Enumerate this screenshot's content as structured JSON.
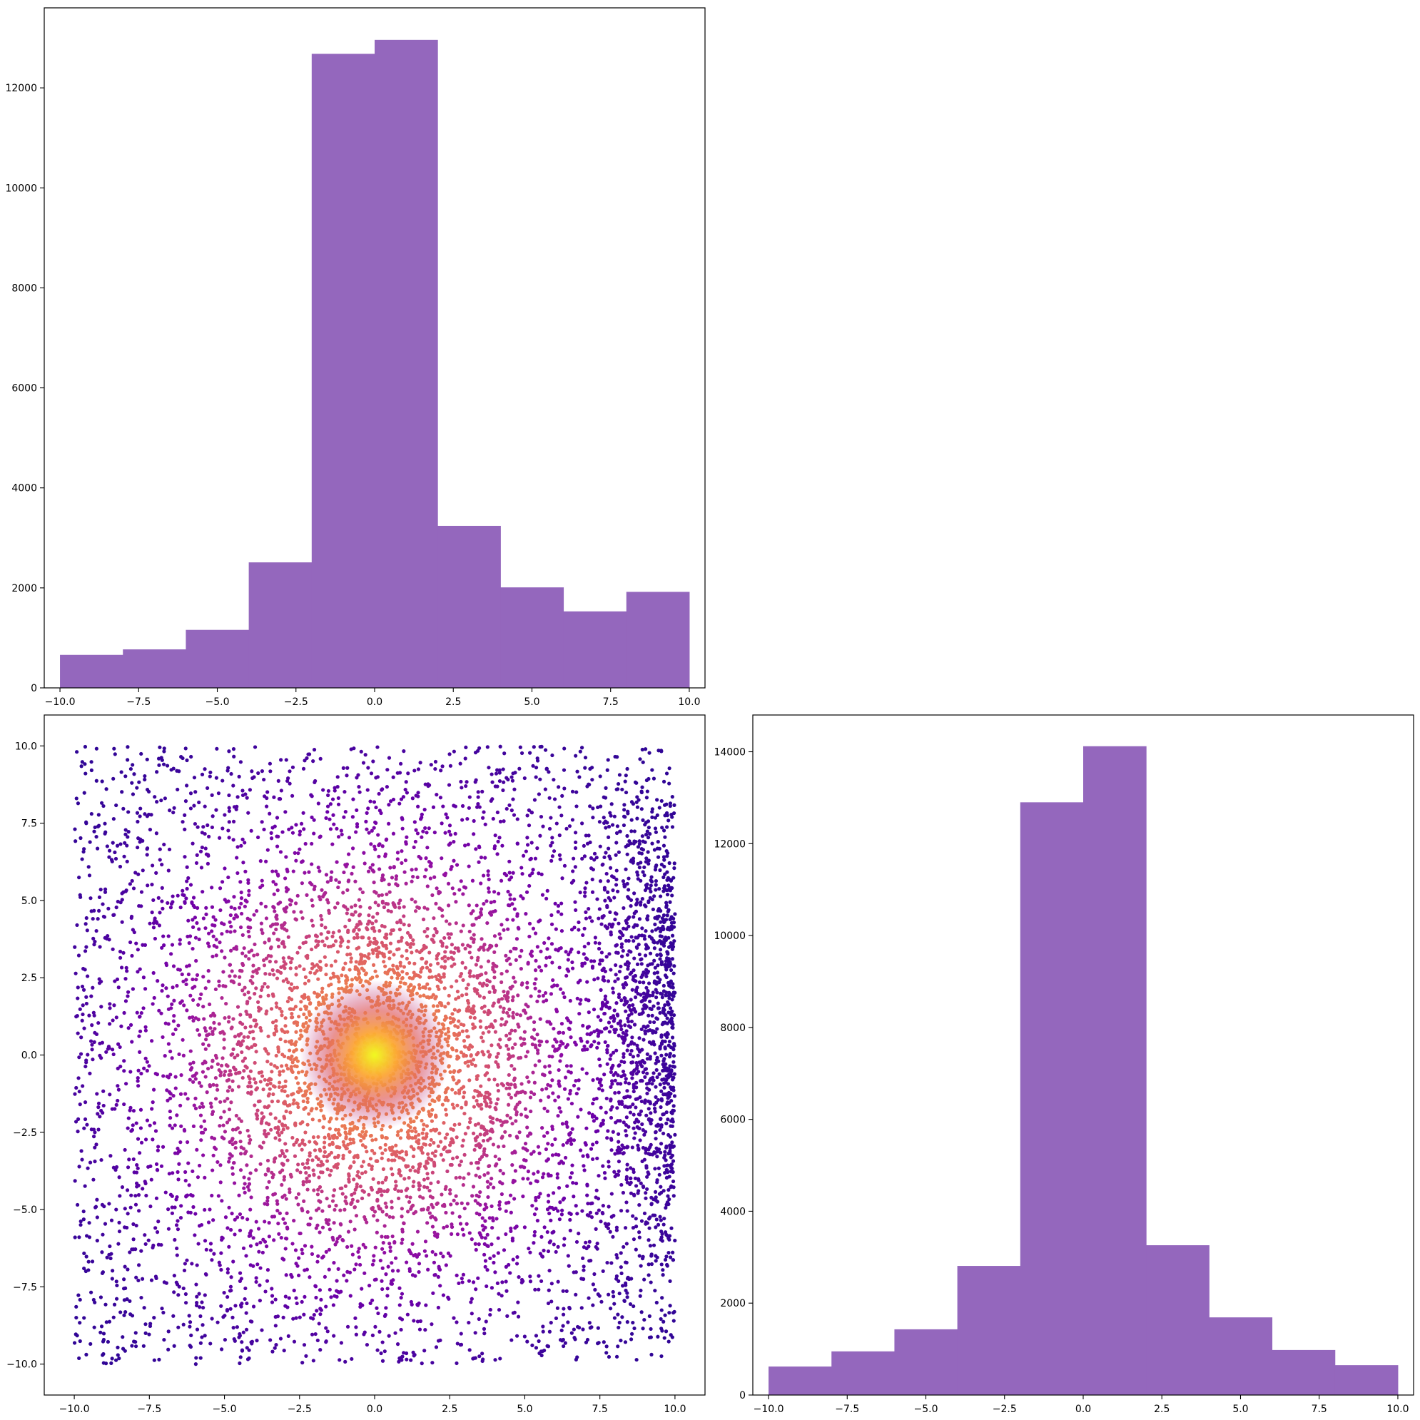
{
  "chart_data": [
    {
      "id": "top-left-histogram",
      "type": "bar",
      "kind": "histogram",
      "bin_edges": [
        -10,
        -8,
        -6,
        -4,
        -2,
        0,
        2,
        4,
        6,
        8,
        10
      ],
      "values": [
        660,
        770,
        1160,
        2510,
        12680,
        12960,
        3240,
        2010,
        1530,
        1920
      ],
      "xlim": [
        -10.5,
        10.5
      ],
      "ylim": [
        0,
        13600
      ],
      "xticks": [
        -10,
        -7.5,
        -5,
        -2.5,
        0,
        2.5,
        5,
        7.5,
        10
      ],
      "xtick_labels": [
        "−10.0",
        "−7.5",
        "−5.0",
        "−2.5",
        "0.0",
        "2.5",
        "5.0",
        "7.5",
        "10.0"
      ],
      "yticks": [
        0,
        2000,
        4000,
        6000,
        8000,
        10000,
        12000
      ],
      "ytick_labels": [
        "0",
        "2000",
        "4000",
        "6000",
        "8000",
        "10000",
        "12000"
      ],
      "color": "#9467bd",
      "title": "",
      "xlabel": "",
      "ylabel": "",
      "grid": false
    },
    {
      "id": "bottom-left-scatter",
      "type": "scatter",
      "description_of_data": "approx. 20000 points uniformly spread over x,y in [-10,10], colored by local density (plasma colormap); densest region near (0,0), second denser cluster near x≈9, y≈1",
      "point_count": 20000,
      "x_range": [
        -10,
        10
      ],
      "y_range": [
        -10,
        10
      ],
      "density_peak": [
        0,
        0
      ],
      "secondary_cluster": [
        9,
        1
      ],
      "xlim": [
        -11,
        11
      ],
      "ylim": [
        -11,
        11
      ],
      "xticks": [
        -10,
        -7.5,
        -5,
        -2.5,
        0,
        2.5,
        5,
        7.5,
        10
      ],
      "xtick_labels": [
        "−10.0",
        "−7.5",
        "−5.0",
        "−2.5",
        "0.0",
        "2.5",
        "5.0",
        "7.5",
        "10.0"
      ],
      "yticks": [
        -10,
        -7.5,
        -5,
        -2.5,
        0,
        2.5,
        5,
        7.5,
        10
      ],
      "ytick_labels": [
        "−10.0",
        "−7.5",
        "−5.0",
        "−2.5",
        "0.0",
        "2.5",
        "5.0",
        "7.5",
        "10.0"
      ],
      "colormap": "plasma",
      "colormap_low": "#0d0887",
      "colormap_high": "#f0f921",
      "title": "",
      "xlabel": "",
      "ylabel": "",
      "grid": false
    },
    {
      "id": "bottom-right-histogram",
      "type": "bar",
      "kind": "histogram",
      "bin_edges": [
        -10,
        -8,
        -6,
        -4,
        -2,
        0,
        2,
        4,
        6,
        8,
        10
      ],
      "values": [
        620,
        950,
        1430,
        2810,
        12900,
        14120,
        3260,
        1690,
        980,
        650
      ],
      "xlim": [
        -10.5,
        10.5
      ],
      "ylim": [
        0,
        14800
      ],
      "xticks": [
        -10,
        -7.5,
        -5,
        -2.5,
        0,
        2.5,
        5,
        7.5,
        10
      ],
      "xtick_labels": [
        "−10.0",
        "−7.5",
        "−5.0",
        "−2.5",
        "0.0",
        "2.5",
        "5.0",
        "7.5",
        "10.0"
      ],
      "yticks": [
        0,
        2000,
        4000,
        6000,
        8000,
        10000,
        12000,
        14000
      ],
      "ytick_labels": [
        "0",
        "2000",
        "4000",
        "6000",
        "8000",
        "10000",
        "12000",
        "14000"
      ],
      "color": "#9467bd",
      "title": "",
      "xlabel": "",
      "ylabel": "",
      "grid": false
    }
  ]
}
